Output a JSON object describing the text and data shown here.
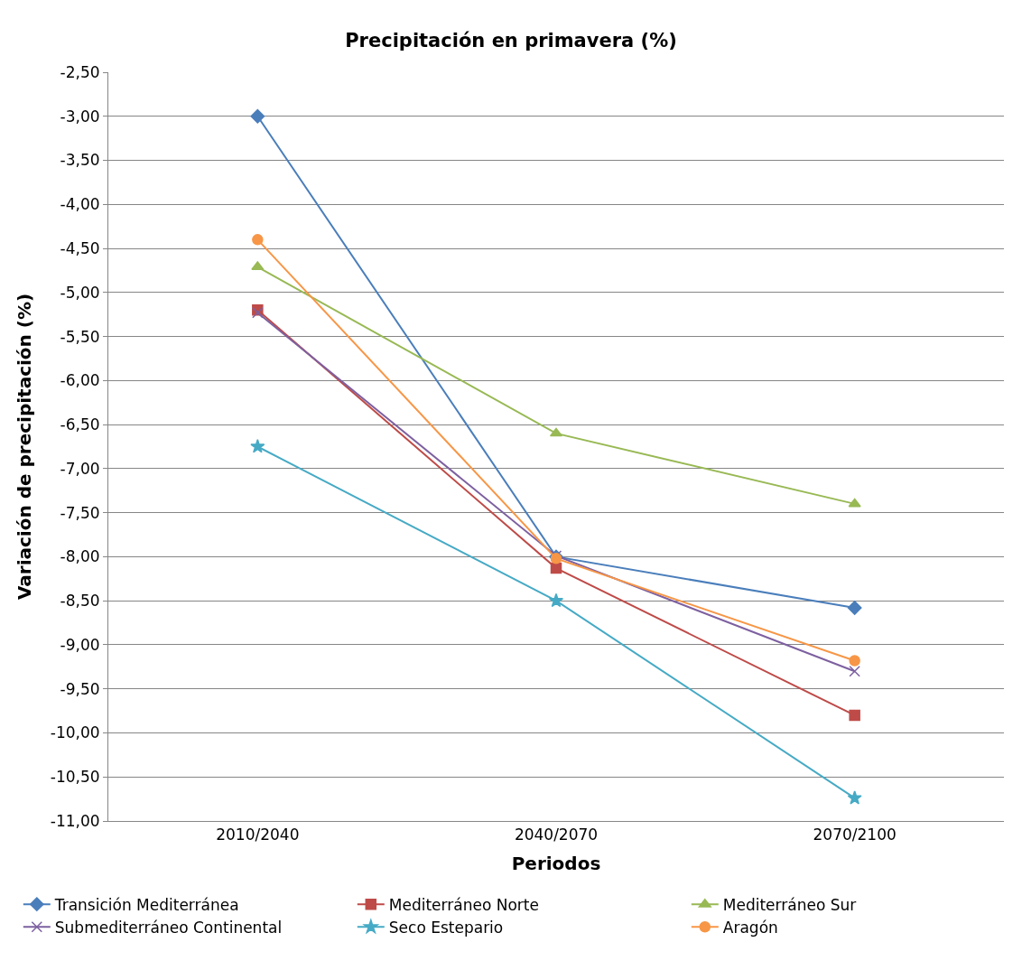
{
  "chart_data": {
    "type": "line",
    "title": "Precipitación en primavera (%)",
    "xlabel": "Periodos",
    "ylabel": "Variación de precipitación (%)",
    "categories": [
      "2010/2040",
      "2040/2070",
      "2070/2100"
    ],
    "series": [
      {
        "name": "Transición Mediterránea",
        "color": "#4a7ebb",
        "marker": "diamond",
        "values": [
          -3.0,
          -8.0,
          -8.58
        ]
      },
      {
        "name": "Mediterráneo Norte",
        "color": "#be4b48",
        "marker": "square",
        "values": [
          -5.2,
          -8.13,
          -9.8
        ]
      },
      {
        "name": "Mediterráneo Sur",
        "color": "#98b954",
        "marker": "triangle",
        "values": [
          -4.71,
          -6.6,
          -7.4
        ]
      },
      {
        "name": "Submediterráneo Continental",
        "color": "#7d60a0",
        "marker": "cross",
        "values": [
          -5.23,
          -7.99,
          -9.3
        ]
      },
      {
        "name": "Seco Estepario",
        "color": "#46aac5",
        "marker": "star",
        "values": [
          -6.75,
          -8.5,
          -10.74
        ]
      },
      {
        "name": "Aragón",
        "color": "#f79646",
        "marker": "circle",
        "values": [
          -4.4,
          -8.02,
          -9.18
        ]
      }
    ],
    "ylim": [
      -11,
      -2.5
    ],
    "yticks": [
      {
        "value": -2.5,
        "label": "-2,50"
      },
      {
        "value": -3,
        "label": "-3,00"
      },
      {
        "value": -3.5,
        "label": "-3,50"
      },
      {
        "value": -4,
        "label": "-4,00"
      },
      {
        "value": -4.5,
        "label": "-4,50"
      },
      {
        "value": -5,
        "label": "-5,00"
      },
      {
        "value": -5.5,
        "label": "-5,50"
      },
      {
        "value": -6,
        "label": "-6,00"
      },
      {
        "value": -6.5,
        "label": "-6,50"
      },
      {
        "value": -7,
        "label": "-7,00"
      },
      {
        "value": -7.5,
        "label": "-7,50"
      },
      {
        "value": -8,
        "label": "-8,00"
      },
      {
        "value": -8.5,
        "label": "-8,50"
      },
      {
        "value": -9,
        "label": "-9,00"
      },
      {
        "value": -9.5,
        "label": "-9,50"
      },
      {
        "value": -10,
        "label": "-10,00"
      },
      {
        "value": -10.5,
        "label": "-10,50"
      },
      {
        "value": -11,
        "label": "-11,00"
      }
    ],
    "grid": "y",
    "legend": "bottom",
    "line_style": "solid"
  }
}
